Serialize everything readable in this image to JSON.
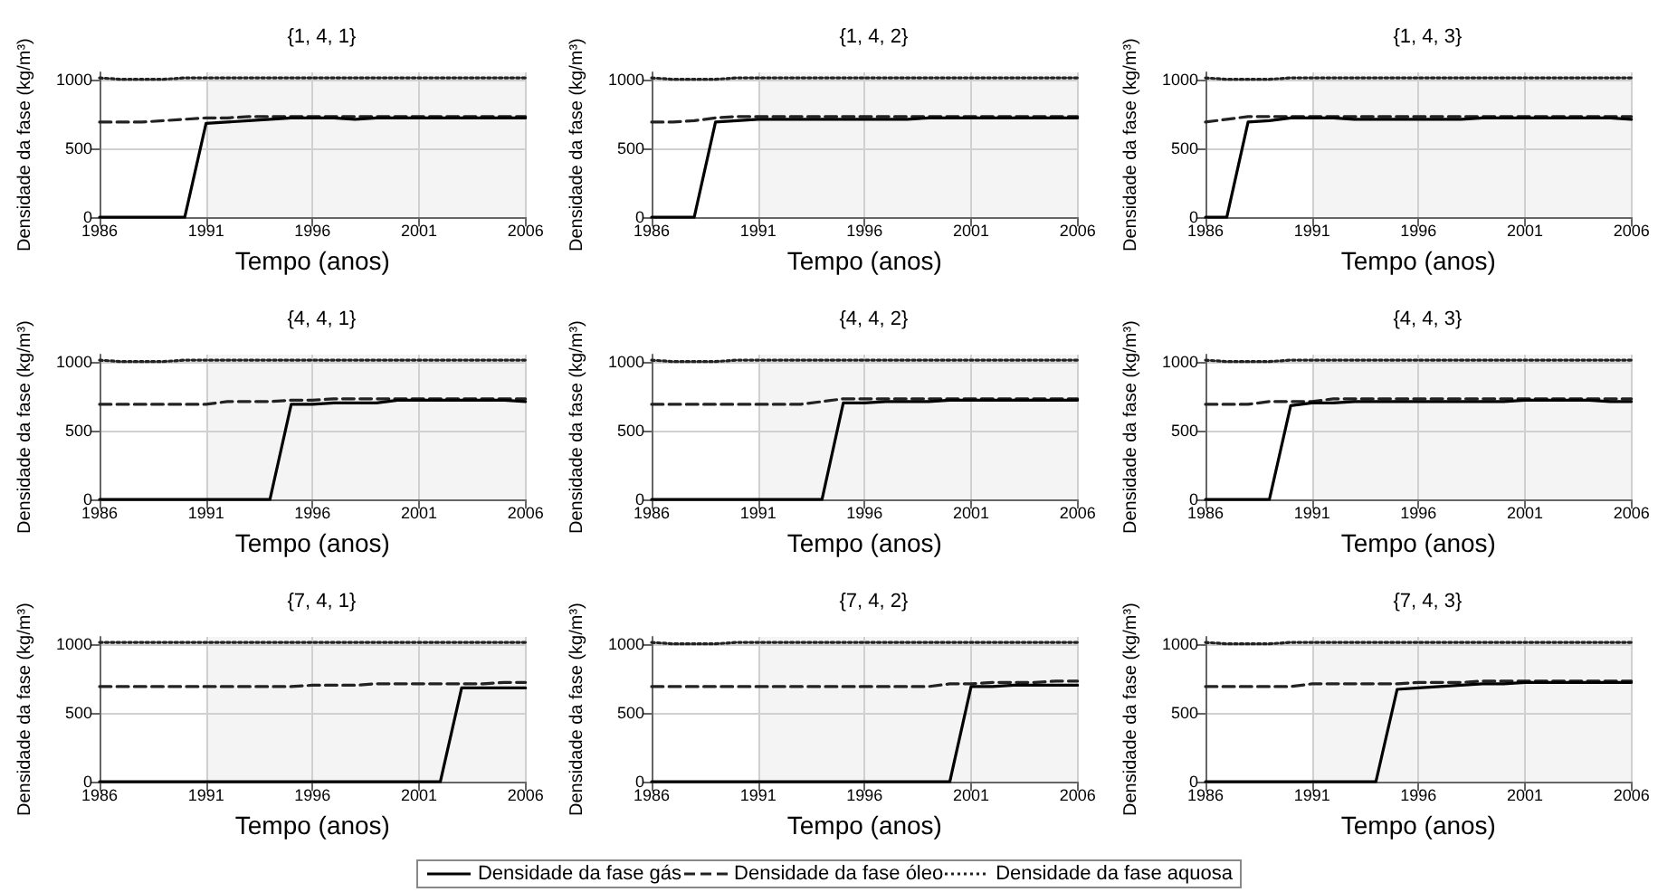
{
  "chart_data": [
    {
      "type": "line",
      "title": "{1, 4, 1}",
      "xlabel": "Tempo (anos)",
      "ylabel": "Densidade da fase (kg/m³)",
      "x": [
        1986,
        1987,
        1988,
        1989,
        1990,
        1991,
        1992,
        1993,
        1994,
        1995,
        1996,
        1997,
        1998,
        1999,
        2000,
        2001,
        2002,
        2003,
        2004,
        2005,
        2006
      ],
      "xlim": [
        1986,
        2006
      ],
      "xticks": [
        1986,
        1991,
        1996,
        2001,
        2006
      ],
      "ylim": [
        0,
        1050
      ],
      "yticks": [
        0,
        500,
        1000
      ],
      "grid": true,
      "legend": "bottom",
      "bands": [
        {
          "axis": "x",
          "from": 1991,
          "to": 2006,
          "color": "#f4f4f4"
        }
      ],
      "series": [
        {
          "name": "Densidade da fase gás",
          "color": "#000000",
          "line_style": "solid",
          "values": [
            0,
            0,
            0,
            0,
            0,
            680,
            690,
            700,
            710,
            720,
            720,
            720,
            710,
            720,
            720,
            720,
            720,
            720,
            720,
            720,
            720
          ]
        },
        {
          "name": "Densidade da fase óleo",
          "color": "#222222",
          "line_style": "dashed",
          "values": [
            690,
            690,
            690,
            700,
            710,
            720,
            720,
            730,
            730,
            730,
            730,
            730,
            730,
            730,
            730,
            730,
            730,
            730,
            730,
            730,
            730
          ]
        },
        {
          "name": "Densidade da fase aquosa",
          "color": "#222222",
          "line_style": "dotted",
          "values": [
            1010,
            1000,
            1000,
            1000,
            1010,
            1010,
            1010,
            1010,
            1010,
            1010,
            1010,
            1010,
            1010,
            1010,
            1010,
            1010,
            1010,
            1010,
            1010,
            1010,
            1010
          ]
        }
      ]
    },
    {
      "type": "line",
      "title": "{1, 4, 2}",
      "xlabel": "Tempo (anos)",
      "ylabel": "Densidade da fase (kg/m³)",
      "x": [
        1986,
        1987,
        1988,
        1989,
        1990,
        1991,
        1992,
        1993,
        1994,
        1995,
        1996,
        1997,
        1998,
        1999,
        2000,
        2001,
        2002,
        2003,
        2004,
        2005,
        2006
      ],
      "xlim": [
        1986,
        2006
      ],
      "xticks": [
        1986,
        1991,
        1996,
        2001,
        2006
      ],
      "ylim": [
        0,
        1050
      ],
      "yticks": [
        0,
        500,
        1000
      ],
      "grid": true,
      "bands": [
        {
          "axis": "x",
          "from": 1991,
          "to": 2006,
          "color": "#f4f4f4"
        }
      ],
      "series": [
        {
          "color": "#000000",
          "line_style": "solid",
          "values": [
            0,
            0,
            0,
            690,
            700,
            710,
            710,
            710,
            710,
            710,
            710,
            710,
            710,
            720,
            720,
            720,
            720,
            720,
            720,
            720,
            720
          ]
        },
        {
          "color": "#222222",
          "line_style": "dashed",
          "values": [
            690,
            690,
            700,
            720,
            730,
            730,
            730,
            730,
            730,
            730,
            730,
            730,
            730,
            730,
            730,
            730,
            730,
            730,
            730,
            730,
            730
          ]
        },
        {
          "color": "#222222",
          "line_style": "dotted",
          "values": [
            1010,
            1000,
            1000,
            1000,
            1010,
            1010,
            1010,
            1010,
            1010,
            1010,
            1010,
            1010,
            1010,
            1010,
            1010,
            1010,
            1010,
            1010,
            1010,
            1010,
            1010
          ]
        }
      ]
    },
    {
      "type": "line",
      "title": "{1, 4, 3}",
      "xlabel": "Tempo (anos)",
      "ylabel": "Densidade da fase (kg/m³)",
      "x": [
        1986,
        1987,
        1988,
        1989,
        1990,
        1991,
        1992,
        1993,
        1994,
        1995,
        1996,
        1997,
        1998,
        1999,
        2000,
        2001,
        2002,
        2003,
        2004,
        2005,
        2006
      ],
      "xlim": [
        1986,
        2006
      ],
      "xticks": [
        1986,
        1991,
        1996,
        2001,
        2006
      ],
      "ylim": [
        0,
        1050
      ],
      "yticks": [
        0,
        500,
        1000
      ],
      "grid": true,
      "bands": [
        {
          "axis": "x",
          "from": 1991,
          "to": 2006,
          "color": "#f4f4f4"
        }
      ],
      "series": [
        {
          "color": "#000000",
          "line_style": "solid",
          "values": [
            0,
            0,
            690,
            700,
            720,
            720,
            720,
            710,
            710,
            710,
            710,
            710,
            710,
            720,
            720,
            720,
            720,
            720,
            720,
            720,
            710
          ]
        },
        {
          "color": "#222222",
          "line_style": "dashed",
          "values": [
            690,
            710,
            730,
            730,
            730,
            730,
            730,
            730,
            730,
            730,
            730,
            730,
            730,
            730,
            730,
            730,
            730,
            730,
            730,
            730,
            730
          ]
        },
        {
          "color": "#222222",
          "line_style": "dotted",
          "values": [
            1010,
            1000,
            1000,
            1000,
            1010,
            1010,
            1010,
            1010,
            1010,
            1010,
            1010,
            1010,
            1010,
            1010,
            1010,
            1010,
            1010,
            1010,
            1010,
            1010,
            1010
          ]
        }
      ]
    },
    {
      "type": "line",
      "title": "{4, 4, 1}",
      "xlabel": "Tempo (anos)",
      "ylabel": "Densidade da fase (kg/m³)",
      "x": [
        1986,
        1987,
        1988,
        1989,
        1990,
        1991,
        1992,
        1993,
        1994,
        1995,
        1996,
        1997,
        1998,
        1999,
        2000,
        2001,
        2002,
        2003,
        2004,
        2005,
        2006
      ],
      "xlim": [
        1986,
        2006
      ],
      "xticks": [
        1986,
        1991,
        1996,
        2001,
        2006
      ],
      "ylim": [
        0,
        1050
      ],
      "yticks": [
        0,
        500,
        1000
      ],
      "grid": true,
      "bands": [
        {
          "axis": "x",
          "from": 1991,
          "to": 2006,
          "color": "#f4f4f4"
        }
      ],
      "series": [
        {
          "color": "#000000",
          "line_style": "solid",
          "values": [
            0,
            0,
            0,
            0,
            0,
            0,
            0,
            0,
            0,
            690,
            690,
            700,
            700,
            700,
            720,
            720,
            720,
            720,
            720,
            720,
            710
          ]
        },
        {
          "color": "#222222",
          "line_style": "dashed",
          "values": [
            690,
            690,
            690,
            690,
            690,
            690,
            710,
            710,
            710,
            720,
            720,
            730,
            730,
            730,
            730,
            730,
            730,
            730,
            730,
            730,
            730
          ]
        },
        {
          "color": "#222222",
          "line_style": "dotted",
          "values": [
            1010,
            1000,
            1000,
            1000,
            1010,
            1010,
            1010,
            1010,
            1010,
            1010,
            1010,
            1010,
            1010,
            1010,
            1010,
            1010,
            1010,
            1010,
            1010,
            1010,
            1010
          ]
        }
      ]
    },
    {
      "type": "line",
      "title": "{4, 4, 2}",
      "xlabel": "Tempo (anos)",
      "ylabel": "Densidade da fase (kg/m³)",
      "x": [
        1986,
        1987,
        1988,
        1989,
        1990,
        1991,
        1992,
        1993,
        1994,
        1995,
        1996,
        1997,
        1998,
        1999,
        2000,
        2001,
        2002,
        2003,
        2004,
        2005,
        2006
      ],
      "xlim": [
        1986,
        2006
      ],
      "xticks": [
        1986,
        1991,
        1996,
        2001,
        2006
      ],
      "ylim": [
        0,
        1050
      ],
      "yticks": [
        0,
        500,
        1000
      ],
      "grid": true,
      "bands": [
        {
          "axis": "x",
          "from": 1991,
          "to": 2006,
          "color": "#f4f4f4"
        }
      ],
      "series": [
        {
          "color": "#000000",
          "line_style": "solid",
          "values": [
            0,
            0,
            0,
            0,
            0,
            0,
            0,
            0,
            0,
            700,
            700,
            710,
            710,
            710,
            720,
            720,
            720,
            720,
            720,
            720,
            720
          ]
        },
        {
          "color": "#222222",
          "line_style": "dashed",
          "values": [
            690,
            690,
            690,
            690,
            690,
            690,
            690,
            690,
            710,
            730,
            730,
            730,
            730,
            730,
            730,
            730,
            730,
            730,
            730,
            730,
            730
          ]
        },
        {
          "color": "#222222",
          "line_style": "dotted",
          "values": [
            1010,
            1000,
            1000,
            1000,
            1010,
            1010,
            1010,
            1010,
            1010,
            1010,
            1010,
            1010,
            1010,
            1010,
            1010,
            1010,
            1010,
            1010,
            1010,
            1010,
            1010
          ]
        }
      ]
    },
    {
      "type": "line",
      "title": "{4, 4, 3}",
      "xlabel": "Tempo (anos)",
      "ylabel": "Densidade da fase (kg/m³)",
      "x": [
        1986,
        1987,
        1988,
        1989,
        1990,
        1991,
        1992,
        1993,
        1994,
        1995,
        1996,
        1997,
        1998,
        1999,
        2000,
        2001,
        2002,
        2003,
        2004,
        2005,
        2006
      ],
      "xlim": [
        1986,
        2006
      ],
      "xticks": [
        1986,
        1991,
        1996,
        2001,
        2006
      ],
      "ylim": [
        0,
        1050
      ],
      "yticks": [
        0,
        500,
        1000
      ],
      "grid": true,
      "bands": [
        {
          "axis": "x",
          "from": 1991,
          "to": 2006,
          "color": "#f4f4f4"
        }
      ],
      "series": [
        {
          "color": "#000000",
          "line_style": "solid",
          "values": [
            0,
            0,
            0,
            0,
            680,
            700,
            700,
            710,
            710,
            710,
            710,
            710,
            710,
            710,
            710,
            720,
            720,
            720,
            720,
            710,
            710
          ]
        },
        {
          "color": "#222222",
          "line_style": "dashed",
          "values": [
            690,
            690,
            690,
            710,
            710,
            710,
            730,
            730,
            730,
            730,
            730,
            730,
            730,
            730,
            730,
            730,
            730,
            730,
            730,
            730,
            730
          ]
        },
        {
          "color": "#222222",
          "line_style": "dotted",
          "values": [
            1010,
            1000,
            1000,
            1000,
            1010,
            1010,
            1010,
            1010,
            1010,
            1010,
            1010,
            1010,
            1010,
            1010,
            1010,
            1010,
            1010,
            1010,
            1010,
            1010,
            1010
          ]
        }
      ]
    },
    {
      "type": "line",
      "title": "{7, 4, 1}",
      "xlabel": "Tempo (anos)",
      "ylabel": "Densidade da fase (kg/m³)",
      "x": [
        1986,
        1987,
        1988,
        1989,
        1990,
        1991,
        1992,
        1993,
        1994,
        1995,
        1996,
        1997,
        1998,
        1999,
        2000,
        2001,
        2002,
        2003,
        2004,
        2005,
        2006
      ],
      "xlim": [
        1986,
        2006
      ],
      "xticks": [
        1986,
        1991,
        1996,
        2001,
        2006
      ],
      "ylim": [
        0,
        1050
      ],
      "yticks": [
        0,
        500,
        1000
      ],
      "grid": true,
      "bands": [
        {
          "axis": "x",
          "from": 1991,
          "to": 2006,
          "color": "#f4f4f4"
        }
      ],
      "series": [
        {
          "color": "#000000",
          "line_style": "solid",
          "values": [
            0,
            0,
            0,
            0,
            0,
            0,
            0,
            0,
            0,
            0,
            0,
            0,
            0,
            0,
            0,
            0,
            0,
            680,
            680,
            680,
            680
          ]
        },
        {
          "color": "#222222",
          "line_style": "dashed",
          "values": [
            690,
            690,
            690,
            690,
            690,
            690,
            690,
            690,
            690,
            690,
            700,
            700,
            700,
            710,
            710,
            710,
            710,
            710,
            710,
            720,
            720
          ]
        },
        {
          "color": "#222222",
          "line_style": "dotted",
          "values": [
            1010,
            1010,
            1010,
            1010,
            1010,
            1010,
            1010,
            1010,
            1010,
            1010,
            1010,
            1010,
            1010,
            1010,
            1010,
            1010,
            1010,
            1010,
            1010,
            1010,
            1010
          ]
        }
      ]
    },
    {
      "type": "line",
      "title": "{7, 4, 2}",
      "xlabel": "Tempo (anos)",
      "ylabel": "Densidade da fase (kg/m³)",
      "x": [
        1986,
        1987,
        1988,
        1989,
        1990,
        1991,
        1992,
        1993,
        1994,
        1995,
        1996,
        1997,
        1998,
        1999,
        2000,
        2001,
        2002,
        2003,
        2004,
        2005,
        2006
      ],
      "xlim": [
        1986,
        2006
      ],
      "xticks": [
        1986,
        1991,
        1996,
        2001,
        2006
      ],
      "ylim": [
        0,
        1050
      ],
      "yticks": [
        0,
        500,
        1000
      ],
      "grid": true,
      "bands": [
        {
          "axis": "x",
          "from": 1991,
          "to": 2006,
          "color": "#f4f4f4"
        }
      ],
      "series": [
        {
          "color": "#000000",
          "line_style": "solid",
          "values": [
            0,
            0,
            0,
            0,
            0,
            0,
            0,
            0,
            0,
            0,
            0,
            0,
            0,
            0,
            0,
            690,
            690,
            700,
            700,
            700,
            700
          ]
        },
        {
          "color": "#222222",
          "line_style": "dashed",
          "values": [
            690,
            690,
            690,
            690,
            690,
            690,
            690,
            690,
            690,
            690,
            690,
            690,
            690,
            690,
            710,
            710,
            720,
            720,
            720,
            730,
            730
          ]
        },
        {
          "color": "#222222",
          "line_style": "dotted",
          "values": [
            1010,
            1000,
            1000,
            1000,
            1010,
            1010,
            1010,
            1010,
            1010,
            1010,
            1010,
            1010,
            1010,
            1010,
            1010,
            1010,
            1010,
            1010,
            1010,
            1010,
            1010
          ]
        }
      ]
    },
    {
      "type": "line",
      "title": "{7, 4, 3}",
      "xlabel": "Tempo (anos)",
      "ylabel": "Densidade da fase (kg/m³)",
      "x": [
        1986,
        1987,
        1988,
        1989,
        1990,
        1991,
        1992,
        1993,
        1994,
        1995,
        1996,
        1997,
        1998,
        1999,
        2000,
        2001,
        2002,
        2003,
        2004,
        2005,
        2006
      ],
      "xlim": [
        1986,
        2006
      ],
      "xticks": [
        1986,
        1991,
        1996,
        2001,
        2006
      ],
      "ylim": [
        0,
        1050
      ],
      "yticks": [
        0,
        500,
        1000
      ],
      "grid": true,
      "bands": [
        {
          "axis": "x",
          "from": 1991,
          "to": 2006,
          "color": "#f4f4f4"
        }
      ],
      "series": [
        {
          "color": "#000000",
          "line_style": "solid",
          "values": [
            0,
            0,
            0,
            0,
            0,
            0,
            0,
            0,
            0,
            670,
            680,
            690,
            700,
            710,
            710,
            720,
            720,
            720,
            720,
            720,
            720
          ]
        },
        {
          "color": "#222222",
          "line_style": "dashed",
          "values": [
            690,
            690,
            690,
            690,
            690,
            710,
            710,
            710,
            710,
            710,
            720,
            720,
            720,
            730,
            730,
            730,
            730,
            730,
            730,
            730,
            730
          ]
        },
        {
          "color": "#222222",
          "line_style": "dotted",
          "values": [
            1010,
            1000,
            1000,
            1000,
            1010,
            1010,
            1010,
            1010,
            1010,
            1010,
            1010,
            1010,
            1010,
            1010,
            1010,
            1010,
            1010,
            1010,
            1010,
            1010,
            1010
          ]
        }
      ]
    }
  ]
}
